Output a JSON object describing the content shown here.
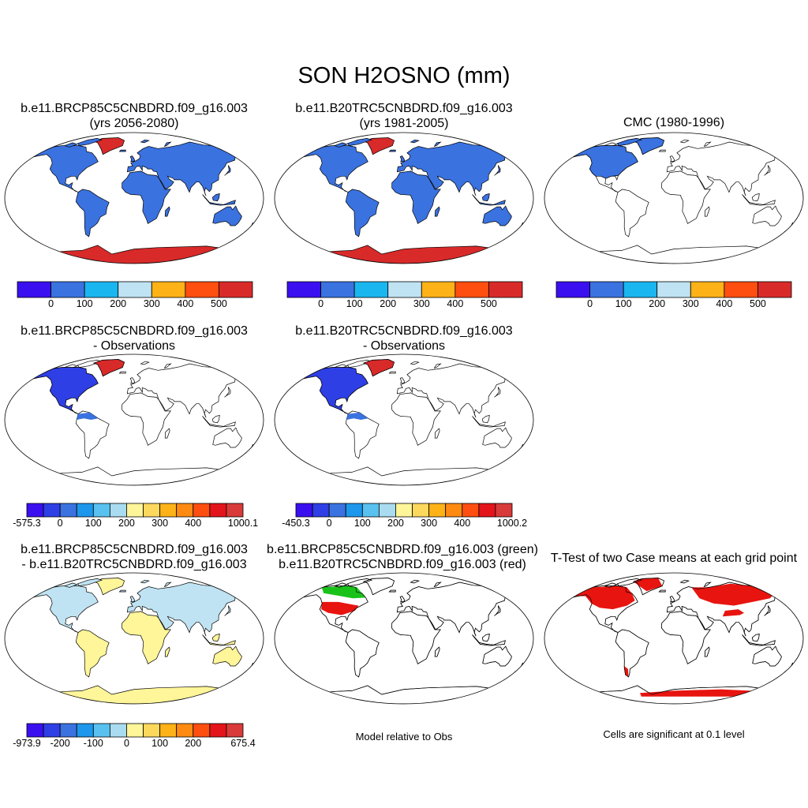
{
  "title": "SON H2OSNO (mm)",
  "panels": [
    {
      "id": "p1",
      "title_lines": [
        "b.e11.BRCP85C5CNBDRD.f09_g16.003",
        "(yrs 2056-2080)"
      ],
      "fill": "model_fut",
      "colorbar": "abs1"
    },
    {
      "id": "p2",
      "title_lines": [
        "b.e11.B20TRC5CNBDRD.f09_g16.003",
        "(yrs 1981-2005)"
      ],
      "fill": "model_hist",
      "colorbar": "abs2"
    },
    {
      "id": "p3",
      "title_lines": [
        "CMC (1980-1996)"
      ],
      "fill": "obs",
      "colorbar": "abs3"
    },
    {
      "id": "p4",
      "title_lines": [
        "b.e11.BRCP85C5CNBDRD.f09_g16.003",
        "- Observations"
      ],
      "fill": "diff_obs",
      "colorbar": "d1"
    },
    {
      "id": "p5",
      "title_lines": [
        "b.e11.B20TRC5CNBDRD.f09_g16.003",
        "- Observations"
      ],
      "fill": "diff_obs",
      "colorbar": "d2"
    },
    {
      "id": "p7",
      "title_lines": [
        "b.e11.BRCP85C5CNBDRD.f09_g16.003",
        "- b.e11.B20TRC5CNBDRD.f09_g16.003"
      ],
      "fill": "case_diff",
      "colorbar": "d3"
    },
    {
      "id": "p8",
      "title_lines": [
        "b.e11.BRCP85C5CNBDRD.f09_g16.003 (green)",
        "b.e11.B20TRC5CNBDRD.f09_g16.003 (red)"
      ],
      "fill": "relobs",
      "note": "Model relative to Obs"
    },
    {
      "id": "p9",
      "title_lines": [
        "T-Test of two Case means at each grid point"
      ],
      "fill": "ttest",
      "note": "Cells are significant at 0.1 level"
    }
  ],
  "colorbars": {
    "abs": {
      "colors": [
        "#3b10f0",
        "#3a72e0",
        "#1ab6f0",
        "#bfe3f2",
        "#fdb217",
        "#fe4e10",
        "#d92a2a"
      ],
      "labels": [
        "0",
        "100",
        "200",
        "300",
        "400",
        "500"
      ]
    },
    "d1": {
      "colors": [
        "#3b10f0",
        "#2e3fe6",
        "#3a72e0",
        "#1c97ec",
        "#58c1ef",
        "#a9dcf0",
        "#fff599",
        "#fcd85d",
        "#fdb217",
        "#fe8a12",
        "#fe4e10",
        "#e3151a",
        "#d93a3a"
      ],
      "labels": [
        "-575.3",
        "0",
        "100",
        "200",
        "300",
        "400",
        "1000.1"
      ]
    },
    "d2": {
      "colors": [
        "#3b10f0",
        "#2e3fe6",
        "#3a72e0",
        "#1c97ec",
        "#58c1ef",
        "#a9dcf0",
        "#fff599",
        "#fcd85d",
        "#fdb217",
        "#fe8a12",
        "#fe4e10",
        "#e3151a",
        "#d93a3a"
      ],
      "labels": [
        "-450.3",
        "0",
        "100",
        "200",
        "300",
        "400",
        "1000.2"
      ]
    },
    "d3": {
      "colors": [
        "#3b10f0",
        "#2e3fe6",
        "#3a72e0",
        "#1c97ec",
        "#58c1ef",
        "#a9dcf0",
        "#fff599",
        "#fcd85d",
        "#fdb217",
        "#fe8a12",
        "#fe4e10",
        "#e3151a",
        "#d93a3a"
      ],
      "labels": [
        "-973.9",
        "-200",
        "-100",
        "0",
        "100",
        "200",
        "675.4"
      ]
    }
  },
  "map_colors": {
    "land_snow": "#3a72e0",
    "greenland": "#d92a2a",
    "antarctica": "#d92a2a",
    "diff_blue": "#2e3fe6",
    "case_diff_land": "#fff599",
    "case_diff_north": "#bfe3f2",
    "relobs_green": "#19c219",
    "relobs_red": "#e8140f",
    "ttest_red": "#e8140f"
  }
}
